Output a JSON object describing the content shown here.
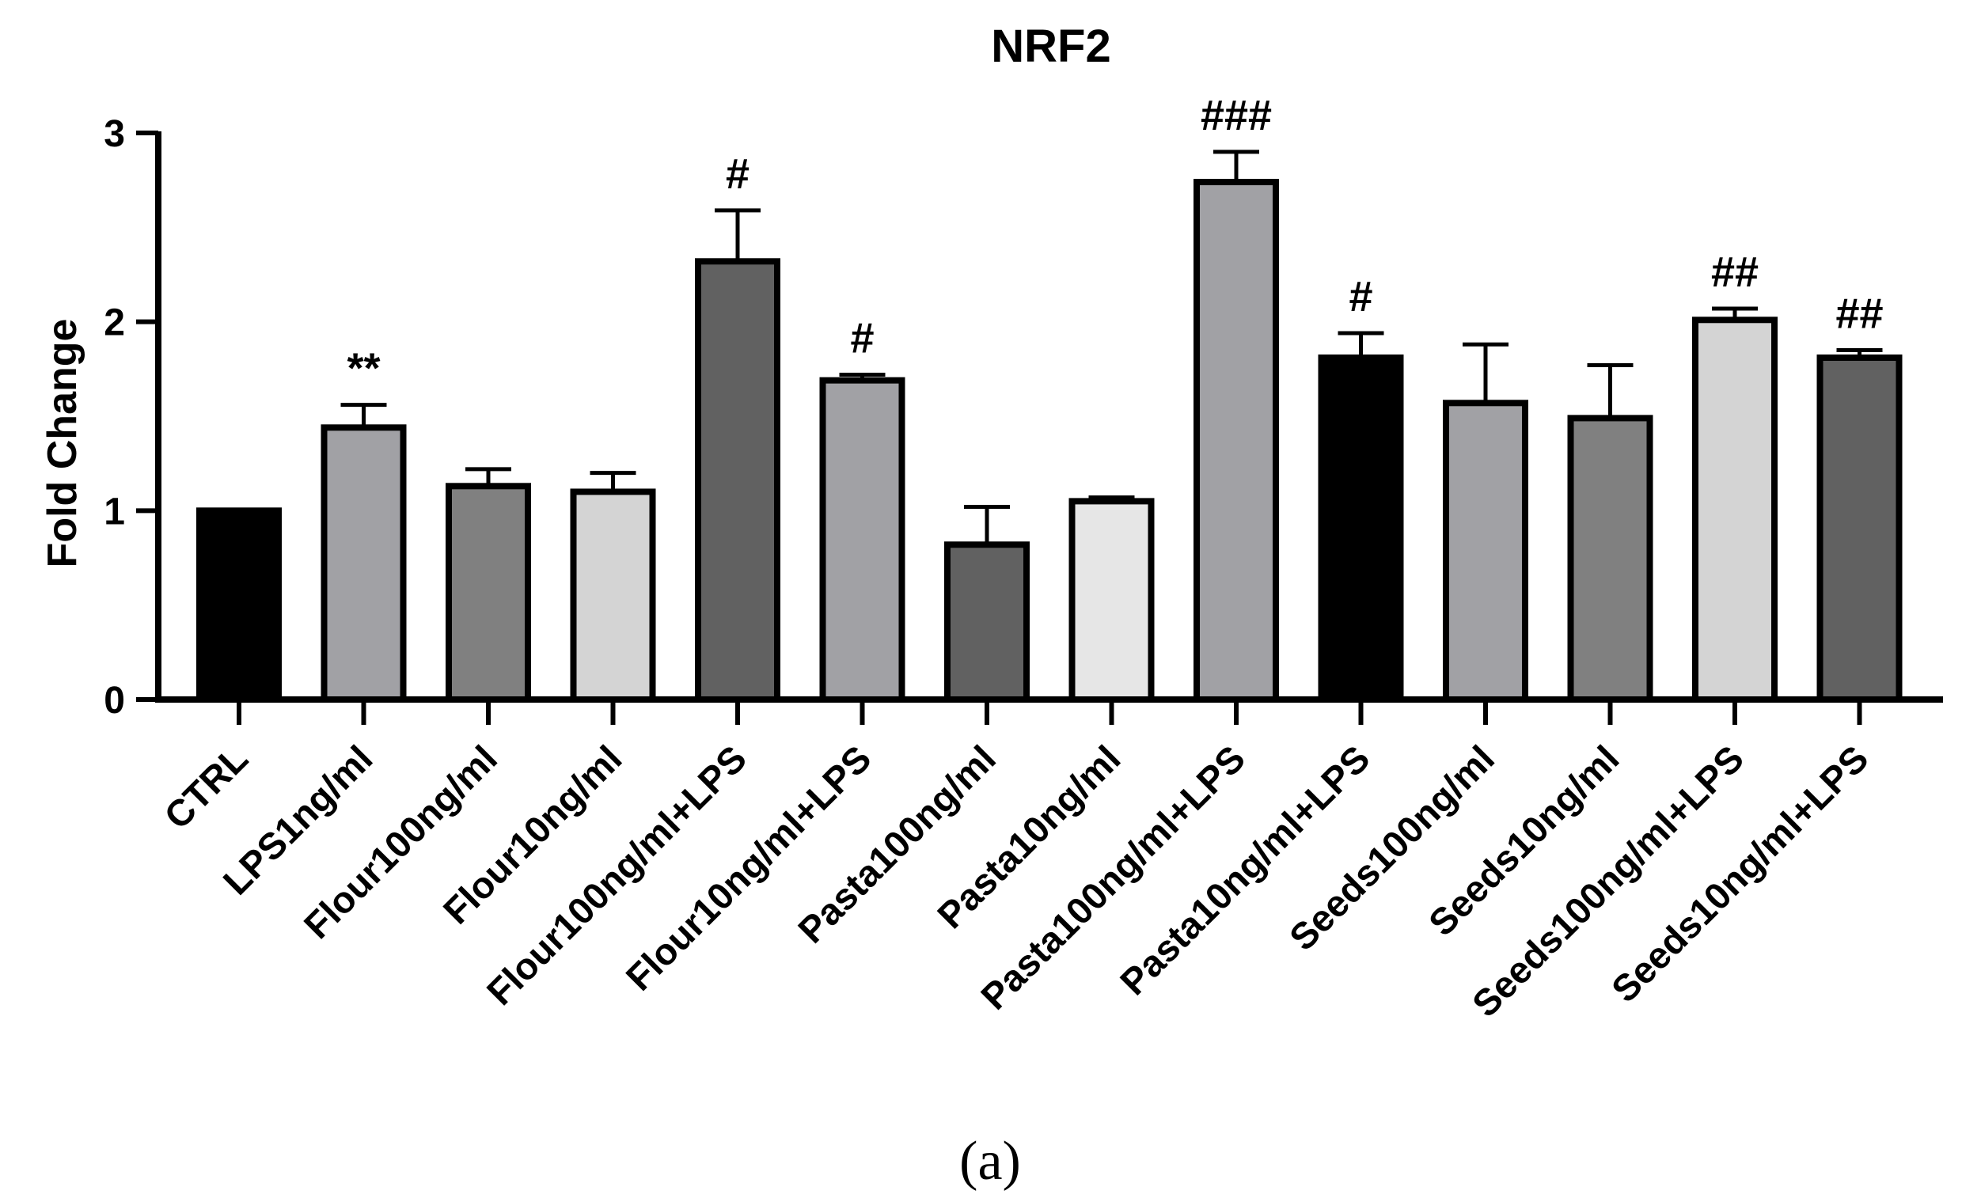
{
  "chart_data": {
    "type": "bar",
    "title": "NRF2",
    "xlabel": "",
    "ylabel": "Fold Change",
    "ylim": [
      0,
      3
    ],
    "yticks": [
      "0",
      "1",
      "2",
      "3"
    ],
    "categories": [
      "CTRL",
      "LPS1ng/ml",
      "Flour100ng/ml",
      "Flour10ng/ml",
      "Flour100ng/ml+LPS",
      "Flour10ng/ml+LPS",
      "Pasta100ng/ml",
      "Pasta10ng/ml",
      "Pasta100ng/ml+LPS",
      "Pasta10ng/ml+LPS",
      "Seeds100ng/ml",
      "Seeds10ng/ml",
      "Seeds100ng/ml+LPS",
      "Seeds10ng/ml+LPS"
    ],
    "values": [
      1.0,
      1.44,
      1.13,
      1.1,
      2.32,
      1.69,
      0.82,
      1.05,
      2.74,
      1.81,
      1.57,
      1.49,
      2.01,
      1.81
    ],
    "errors": [
      0.0,
      0.12,
      0.09,
      0.1,
      0.27,
      0.03,
      0.2,
      0.02,
      0.16,
      0.13,
      0.31,
      0.28,
      0.06,
      0.04
    ],
    "fills": [
      "#000000",
      "#a1a1a5",
      "#808080",
      "#d4d4d4",
      "#616161",
      "#a1a1a5",
      "#616161",
      "#e6e6e6",
      "#a1a1a5",
      "#000000",
      "#a1a1a5",
      "#808080",
      "#d4d4d4",
      "#616161"
    ],
    "annotations": [
      "",
      "**",
      "",
      "",
      "#",
      "#",
      "",
      "",
      "###",
      "#",
      "",
      "",
      "##",
      "##"
    ]
  },
  "caption": "(a)"
}
